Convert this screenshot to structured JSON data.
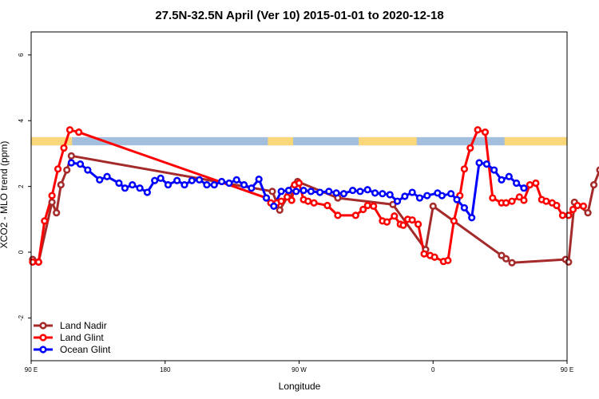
{
  "chart_data": {
    "type": "line",
    "title": "27.5N-32.5N April (Ver 10)   2015-01-01 to 2020-12-18",
    "xlabel": "Longitude",
    "ylabel": "XCO2 - MLO trend (ppm)",
    "xlim": [
      90,
      450
    ],
    "ylim": [
      -3.3,
      6.7
    ],
    "x_ticks": [
      {
        "value": 90,
        "label": "90 E"
      },
      {
        "value": 180,
        "label": "180"
      },
      {
        "value": 270,
        "label": "90 W"
      },
      {
        "value": 360,
        "label": "0"
      },
      {
        "value": 450,
        "label": "90 E"
      },
      {
        "value": 540,
        "label": "180"
      }
    ],
    "y_ticks": [
      {
        "value": -2,
        "label": "-2"
      },
      {
        "value": 0,
        "label": "0"
      },
      {
        "value": 2,
        "label": "2"
      },
      {
        "value": 4,
        "label": "4"
      },
      {
        "value": 6,
        "label": "6"
      }
    ],
    "grid": false,
    "legend_position": "bottom-left",
    "land_mask_band": {
      "y_range": [
        3.25,
        3.5
      ],
      "ocean_color": "#a4bedd",
      "land_color": "#f9d77a",
      "land_segments": [
        [
          90,
          117.5
        ],
        [
          249,
          266
        ],
        [
          310,
          349
        ],
        [
          408,
          450
        ],
        [
          450,
          477.5
        ]
      ]
    },
    "series": [
      {
        "name": "Land Nadir",
        "color": "#a52a2a",
        "x": [
          91,
          95,
          104,
          107,
          110,
          114,
          117,
          252,
          257,
          263,
          266,
          267,
          269,
          296,
          333,
          355,
          360,
          406,
          409,
          413,
          449,
          451,
          455,
          464,
          468,
          472,
          475
        ],
        "y": [
          -0.22,
          -0.3,
          1.52,
          1.2,
          2.05,
          2.5,
          2.93,
          1.85,
          1.28,
          1.75,
          1.95,
          2.05,
          2.15,
          1.65,
          1.45,
          0.08,
          1.4,
          -0.1,
          -0.2,
          -0.32,
          -0.22,
          -0.3,
          1.52,
          1.2,
          2.05,
          2.5,
          2.93
        ]
      },
      {
        "name": "Land Glint",
        "color": "#ff0000",
        "x": [
          91,
          95,
          99,
          104,
          108,
          112,
          116,
          122,
          248,
          251,
          255,
          258,
          262,
          265,
          267,
          270,
          273,
          276,
          280,
          289,
          296,
          308,
          313,
          316,
          320,
          326,
          329,
          334,
          338,
          340,
          343,
          346,
          350,
          354,
          358,
          361,
          367,
          370,
          374,
          378,
          381,
          385,
          390,
          395,
          400,
          406,
          409,
          413,
          418,
          421,
          425,
          429,
          433,
          436,
          440,
          443,
          447,
          451,
          454,
          457,
          461
        ],
        "y": [
          -0.3,
          -0.3,
          0.95,
          1.72,
          2.53,
          3.17,
          3.72,
          3.65,
          1.65,
          1.5,
          1.5,
          1.55,
          1.68,
          1.58,
          2.05,
          2.1,
          1.6,
          1.55,
          1.5,
          1.42,
          1.12,
          1.12,
          1.3,
          1.42,
          1.4,
          0.95,
          0.92,
          1.1,
          0.85,
          0.82,
          1.0,
          0.98,
          0.85,
          -0.05,
          -0.1,
          -0.15,
          -0.28,
          -0.25,
          0.95,
          1.72,
          2.53,
          3.17,
          3.72,
          3.65,
          1.65,
          1.5,
          1.5,
          1.55,
          1.68,
          1.58,
          2.05,
          2.1,
          1.6,
          1.55,
          1.5,
          1.42,
          1.12,
          1.12,
          1.3,
          1.42,
          1.4
        ]
      },
      {
        "name": "Ocean Glint",
        "color": "#0000ff",
        "x": [
          117,
          123,
          128,
          136,
          141,
          149,
          153,
          158,
          163,
          168,
          173,
          177,
          182,
          188,
          193,
          198,
          203,
          208,
          213,
          218,
          223,
          228,
          233,
          238,
          243,
          248,
          253,
          258,
          263,
          268,
          273,
          278,
          284,
          290,
          295,
          300,
          306,
          311,
          316,
          321,
          326,
          331,
          336,
          341,
          346,
          351,
          356,
          363,
          366,
          372,
          376,
          381,
          386,
          391,
          396,
          401,
          406,
          411,
          416,
          421
        ],
        "y": [
          2.72,
          2.68,
          2.5,
          2.2,
          2.3,
          2.1,
          1.95,
          2.05,
          1.95,
          1.82,
          2.18,
          2.25,
          2.05,
          2.18,
          2.05,
          2.18,
          2.2,
          2.05,
          2.05,
          2.15,
          2.1,
          2.2,
          2.05,
          1.95,
          2.22,
          1.65,
          1.4,
          1.85,
          1.88,
          1.85,
          1.88,
          1.85,
          1.82,
          1.85,
          1.8,
          1.78,
          1.88,
          1.85,
          1.9,
          1.8,
          1.78,
          1.75,
          1.55,
          1.7,
          1.82,
          1.65,
          1.72,
          1.8,
          1.72,
          1.78,
          1.6,
          1.35,
          1.05,
          2.72,
          2.68,
          2.5,
          2.2,
          2.3,
          2.1,
          1.95
        ]
      }
    ]
  }
}
